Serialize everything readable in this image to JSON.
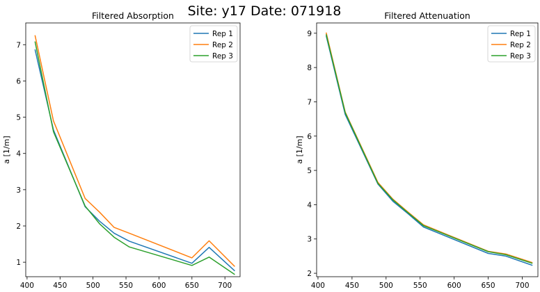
{
  "suptitle": "Site: y17 Date: 071918",
  "chart_data": [
    {
      "type": "line",
      "title": "Filtered Absorption",
      "xlabel": "",
      "ylabel": "a [1/m]",
      "xlim": [
        398,
        723
      ],
      "ylim": [
        0.6,
        7.6
      ],
      "xticks": [
        400,
        450,
        500,
        550,
        600,
        650,
        700
      ],
      "yticks": [
        1,
        2,
        3,
        4,
        5,
        6,
        7
      ],
      "legend": "top-right",
      "x": [
        412,
        440,
        488,
        510,
        532,
        555,
        650,
        676,
        715
      ],
      "series": [
        {
          "name": "Rep 1",
          "color": "#1f77b4",
          "values": [
            6.87,
            4.65,
            2.53,
            2.13,
            1.8,
            1.58,
            0.97,
            1.41,
            0.76
          ]
        },
        {
          "name": "Rep 2",
          "color": "#ff7f0e",
          "values": [
            7.26,
            4.9,
            2.76,
            2.38,
            1.96,
            1.8,
            1.12,
            1.59,
            0.88
          ]
        },
        {
          "name": "Rep 3",
          "color": "#2ca02c",
          "values": [
            7.09,
            4.6,
            2.55,
            2.06,
            1.69,
            1.42,
            0.91,
            1.14,
            0.66
          ]
        }
      ]
    },
    {
      "type": "line",
      "title": "Filtered Attenuation",
      "xlabel": "",
      "ylabel": "a [1/m]",
      "xlim": [
        398,
        723
      ],
      "ylim": [
        1.9,
        9.3
      ],
      "xticks": [
        400,
        450,
        500,
        550,
        600,
        650,
        700
      ],
      "yticks": [
        2,
        3,
        4,
        5,
        6,
        7,
        8,
        9
      ],
      "legend": "top-right",
      "x": [
        412,
        440,
        488,
        510,
        532,
        555,
        650,
        676,
        715
      ],
      "series": [
        {
          "name": "Rep 1",
          "color": "#1f77b4",
          "values": [
            8.93,
            6.63,
            4.6,
            4.1,
            3.74,
            3.35,
            2.58,
            2.5,
            2.23
          ]
        },
        {
          "name": "Rep 2",
          "color": "#ff7f0e",
          "values": [
            9.02,
            6.7,
            4.65,
            4.16,
            3.79,
            3.41,
            2.64,
            2.56,
            2.31
          ]
        },
        {
          "name": "Rep 3",
          "color": "#2ca02c",
          "values": [
            8.97,
            6.68,
            4.62,
            4.14,
            3.77,
            3.39,
            2.63,
            2.54,
            2.29
          ]
        }
      ]
    }
  ]
}
